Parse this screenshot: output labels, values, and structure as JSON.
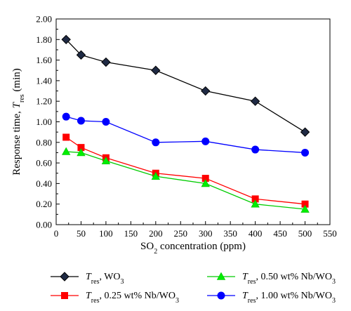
{
  "chart_data": {
    "type": "line",
    "xlabel": {
      "main": "SO",
      "sub": "2",
      "rest": " concentration (ppm)"
    },
    "ylabel": {
      "pre": "Response time, ",
      "var": "T",
      "sub": "res",
      "post": " (min)"
    },
    "xlim": [
      0,
      550
    ],
    "ylim": [
      0,
      2
    ],
    "xticks": [
      0,
      50,
      100,
      150,
      200,
      250,
      300,
      350,
      400,
      450,
      500,
      550
    ],
    "yticks": [
      "0.00",
      "0.20",
      "0.40",
      "0.60",
      "0.80",
      "1.00",
      "1.20",
      "1.40",
      "1.60",
      "1.80",
      "2.00"
    ],
    "grid": false,
    "legend_position": "bottom",
    "series": [
      {
        "name": {
          "var": "T",
          "sub": "res",
          "text": ", WO",
          "text_sub": "3"
        },
        "color": "#000000",
        "marker_fill": "#1f2a44",
        "marker": "diamond",
        "x": [
          20,
          50,
          100,
          200,
          300,
          400,
          500
        ],
        "y": [
          1.8,
          1.65,
          1.58,
          1.5,
          1.3,
          1.2,
          0.9
        ]
      },
      {
        "name": {
          "var": "T",
          "sub": "res",
          "text": ", 0.25 wt% Nb/WO",
          "text_sub": "3"
        },
        "color": "#ff0000",
        "marker_fill": "#ff0000",
        "marker": "square",
        "x": [
          20,
          50,
          100,
          200,
          300,
          400,
          500
        ],
        "y": [
          0.85,
          0.75,
          0.65,
          0.5,
          0.45,
          0.25,
          0.2
        ]
      },
      {
        "name": {
          "var": "T",
          "sub": "res",
          "text": ", 0.50 wt% Nb/WO",
          "text_sub": "3"
        },
        "color": "#00cc00",
        "marker_fill": "#00ee00",
        "marker": "triangle",
        "x": [
          20,
          50,
          100,
          200,
          300,
          400,
          500
        ],
        "y": [
          0.71,
          0.7,
          0.62,
          0.47,
          0.4,
          0.2,
          0.15
        ]
      },
      {
        "name": {
          "var": "T",
          "sub": "res",
          "text": ", 1.00 wt% Nb/WO",
          "text_sub": "3"
        },
        "color": "#0000ff",
        "marker_fill": "#0000ff",
        "marker": "circle",
        "x": [
          20,
          50,
          100,
          200,
          300,
          400,
          500
        ],
        "y": [
          1.05,
          1.01,
          1.0,
          0.8,
          0.81,
          0.73,
          0.7
        ]
      }
    ]
  }
}
